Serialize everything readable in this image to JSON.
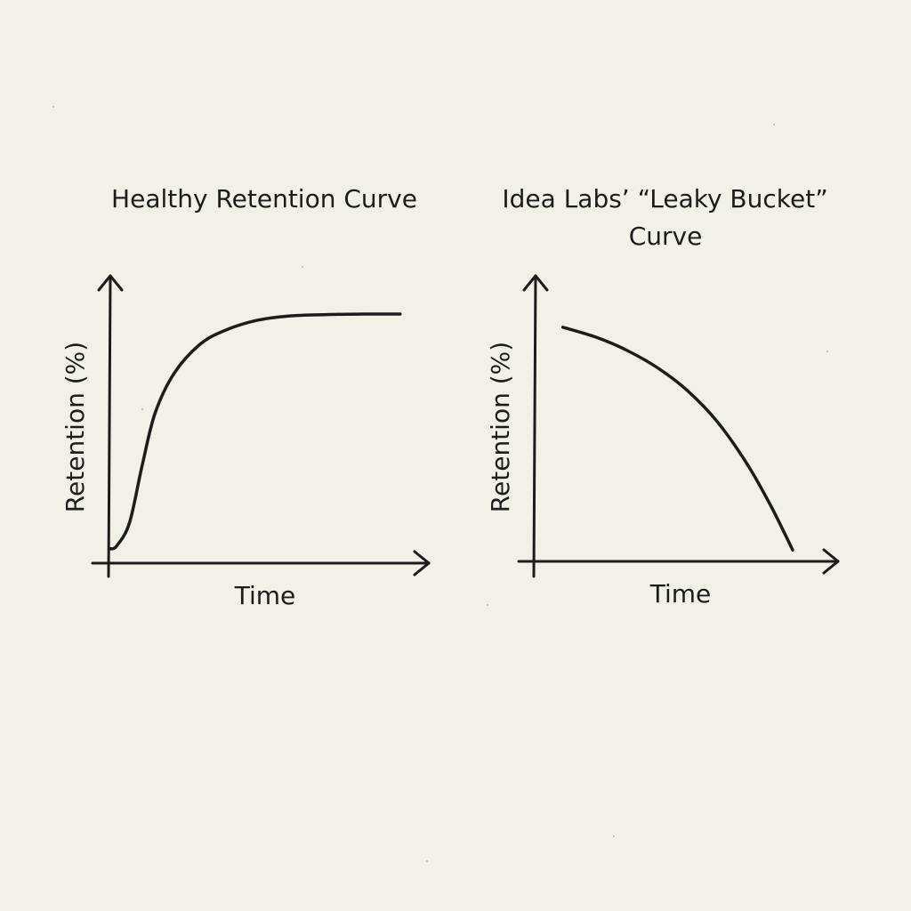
{
  "colors": {
    "background": "#f3f1e7",
    "ink": "#1c1c1c"
  },
  "chart_data": [
    {
      "type": "line",
      "title": "Healthy Retention Curve",
      "xlabel": "Time",
      "ylabel": "Retention (%)",
      "xlim": [
        0,
        10
      ],
      "ylim": [
        0,
        10
      ],
      "grid": false,
      "series": [
        {
          "x": [
            0,
            0.2,
            0.6,
            1.0,
            1.4,
            2.0,
            2.8,
            3.6,
            4.6,
            5.6,
            6.8,
            8.0,
            9.1
          ],
          "y": [
            0.5,
            0.6,
            1.4,
            3.4,
            5.2,
            6.6,
            7.6,
            8.1,
            8.45,
            8.6,
            8.65,
            8.67,
            8.67
          ]
        }
      ]
    },
    {
      "type": "line",
      "title": "Idea Labs’ “Leaky Bucket” Curve",
      "xlabel": "Time",
      "ylabel": "Retention (%)",
      "xlim": [
        0,
        10
      ],
      "ylim": [
        0,
        10
      ],
      "grid": false,
      "series": [
        {
          "x": [
            0.9,
            2.0,
            3.0,
            4.0,
            5.0,
            6.0,
            7.0,
            7.8,
            8.5
          ],
          "y": [
            8.2,
            7.85,
            7.4,
            6.8,
            6.0,
            4.9,
            3.4,
            1.9,
            0.4
          ]
        }
      ]
    }
  ]
}
